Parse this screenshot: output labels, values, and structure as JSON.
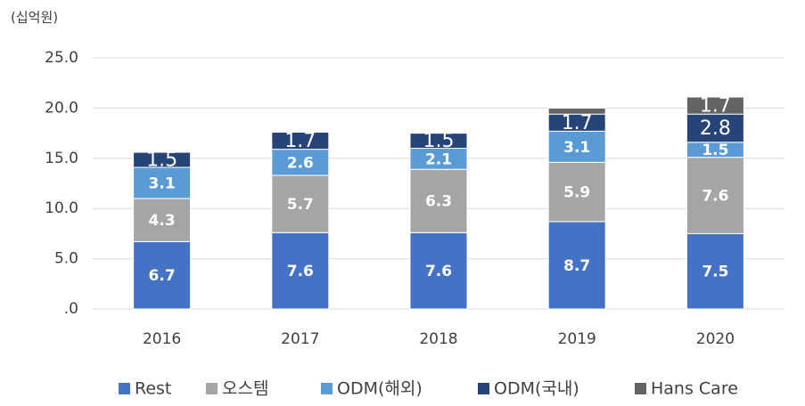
{
  "chart_data": {
    "type": "stacked_bar",
    "y_axis_label": "(십억원)",
    "categories": [
      "2016",
      "2017",
      "2018",
      "2019",
      "2020"
    ],
    "series": [
      {
        "name": "Rest",
        "color": "#4472c4",
        "values": [
          6.7,
          7.6,
          7.6,
          8.7,
          7.5
        ]
      },
      {
        "name": "오스템",
        "color": "#a5a5a5",
        "values": [
          4.3,
          5.7,
          6.3,
          5.9,
          7.6
        ]
      },
      {
        "name": "ODM(해외)",
        "color": "#5b9bd5",
        "values": [
          3.1,
          2.6,
          2.1,
          3.1,
          1.5
        ]
      },
      {
        "name": "ODM(국내)",
        "color": "#264478",
        "values": [
          1.5,
          1.7,
          1.5,
          1.7,
          2.8
        ]
      },
      {
        "name": "Hans Care",
        "color": "#636363",
        "values": [
          null,
          null,
          null,
          0.6,
          1.7
        ]
      }
    ],
    "ylim": [
      0,
      25
    ],
    "yticks": [
      {
        "value": 0,
        "label": ".0"
      },
      {
        "value": 5,
        "label": "5.0"
      },
      {
        "value": 10,
        "label": "10.0"
      },
      {
        "value": 15,
        "label": "15.0"
      },
      {
        "value": 20,
        "label": "20.0"
      },
      {
        "value": 25,
        "label": "25.0"
      }
    ],
    "grid": true,
    "legend": "bottom"
  }
}
